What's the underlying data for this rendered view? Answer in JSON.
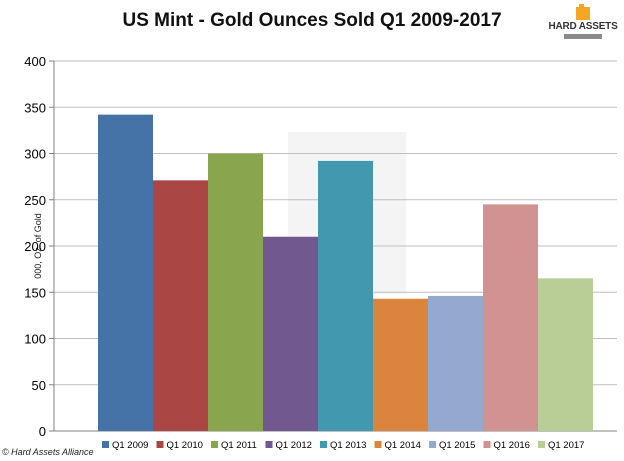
{
  "brand": {
    "logo_text": "HARD ASSETS",
    "logo_color": "#f5a623",
    "copyright": "© Hard Assets Alliance"
  },
  "chart_data": {
    "type": "bar",
    "title": "US Mint - Gold Ounces Sold Q1 2009-2017",
    "xlabel": "",
    "ylabel": "000, Oz. of Gold",
    "ylim": [
      0,
      400
    ],
    "yticks": [
      0,
      50,
      100,
      150,
      200,
      250,
      300,
      350,
      400
    ],
    "grid": true,
    "legend_position": "bottom",
    "series": [
      {
        "name": "Q1 2009",
        "value": 342,
        "color": "#4572a7"
      },
      {
        "name": "Q1 2010",
        "value": 271,
        "color": "#aa4643"
      },
      {
        "name": "Q1 2011",
        "value": 300,
        "color": "#89a54e"
      },
      {
        "name": "Q1 2012",
        "value": 210,
        "color": "#71588f"
      },
      {
        "name": "Q1 2013",
        "value": 292,
        "color": "#4198af"
      },
      {
        "name": "Q1 2014",
        "value": 143,
        "color": "#db843d"
      },
      {
        "name": "Q1 2015",
        "value": 146,
        "color": "#93a9cf"
      },
      {
        "name": "Q1 2016",
        "value": 245,
        "color": "#d19392"
      },
      {
        "name": "Q1 2017",
        "value": 165,
        "color": "#b9cd96"
      }
    ]
  }
}
